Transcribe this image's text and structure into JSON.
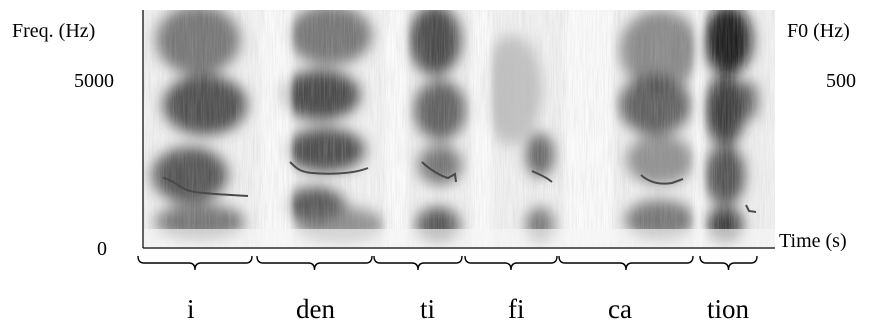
{
  "axes": {
    "left_label": "Freq. (Hz)",
    "left_max": "5000",
    "left_min": "0",
    "right_label": "F0 (Hz)",
    "right_max": "500",
    "time_label": "Time (s)"
  },
  "syllables": [
    {
      "text": "i"
    },
    {
      "text": "den"
    },
    {
      "text": "ti"
    },
    {
      "text": "fi"
    },
    {
      "text": "ca"
    },
    {
      "text": "tion"
    }
  ],
  "colors": {
    "axis": "#000000",
    "pitch": "#4a4a4a",
    "background": "#ffffff"
  }
}
